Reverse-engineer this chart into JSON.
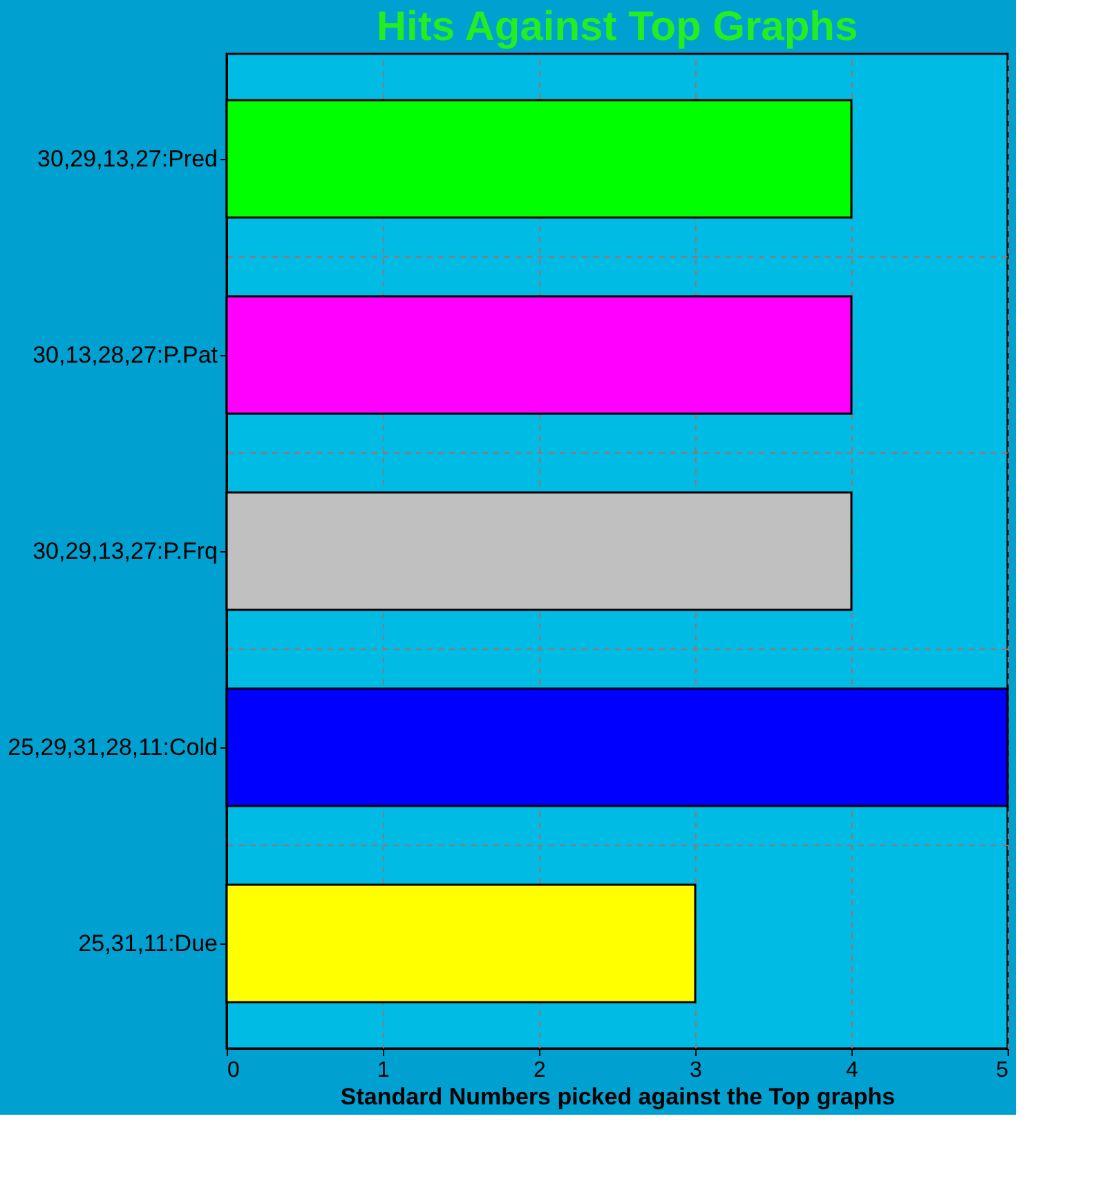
{
  "chart_data": {
    "type": "bar",
    "orientation": "horizontal",
    "title": "Hits Against Top Graphs",
    "xlabel": "Standard Numbers picked against the Top graphs",
    "categories": [
      "30,29,13,27:Pred",
      "30,13,28,27:P.Pat",
      "30,29,13,27:P.Frq",
      "25,29,31,28,11:Cold",
      "25,31,11:Due"
    ],
    "values": [
      4,
      4,
      4,
      5,
      3
    ],
    "colors": [
      "#00ff00",
      "#ff00ff",
      "#c0c0c0",
      "#0000ff",
      "#ffff00"
    ],
    "xlim": [
      0,
      5
    ],
    "xticks": [
      0,
      1,
      2,
      3,
      4,
      5
    ],
    "grid": true,
    "legend": false
  }
}
